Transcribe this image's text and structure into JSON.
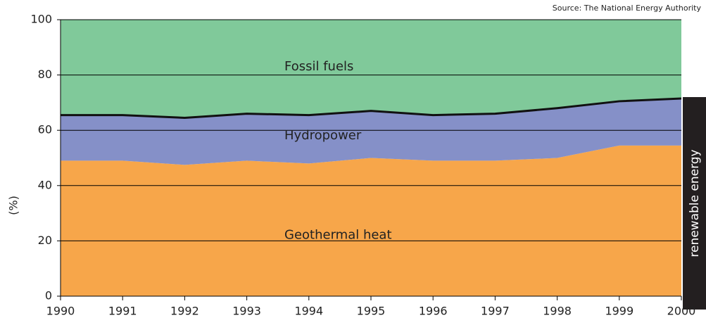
{
  "chart_data": {
    "type": "stacked_area",
    "source": "Source: The National Energy Authority",
    "y_label": "(%)",
    "side_label": "renewable energy",
    "x": [
      1990,
      1991,
      1992,
      1993,
      1994,
      1995,
      1996,
      1997,
      1998,
      1999,
      2000
    ],
    "xlim": [
      1990,
      2000
    ],
    "xticks": [
      1990,
      1991,
      1992,
      1993,
      1994,
      1995,
      1996,
      1997,
      1998,
      1999,
      2000
    ],
    "ylim": [
      0,
      100
    ],
    "yticks": [
      0,
      20,
      40,
      60,
      80,
      100
    ],
    "grid": true,
    "series": [
      {
        "name": "Geothermal heat",
        "color": "#f7a64a",
        "values": [
          49,
          49,
          47.5,
          49,
          48,
          50,
          49,
          49,
          50,
          54.5,
          54.5
        ]
      },
      {
        "name": "Hydropower",
        "color": "#8590c8",
        "values": [
          16.5,
          16.5,
          17,
          17,
          17.5,
          17,
          16.5,
          17,
          18,
          16,
          17
        ]
      },
      {
        "name": "Fossil fuels",
        "color": "#80c99a",
        "values": [
          34.5,
          34.5,
          35.5,
          34,
          34.5,
          33,
          34.5,
          34,
          32,
          29.5,
          28.5
        ]
      }
    ]
  }
}
